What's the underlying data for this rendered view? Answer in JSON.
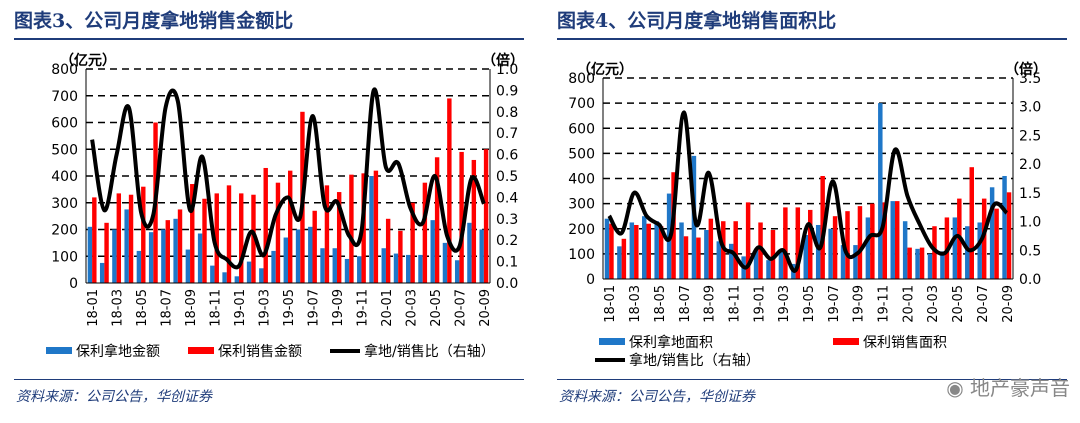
{
  "chart_data": [
    {
      "type": "bar+line",
      "title": "图表3、公司月度拿地销售金额比",
      "ylabel_left": "（亿元）",
      "ylabel_right": "（倍）",
      "ylim_left": [
        0,
        800
      ],
      "ylim_right": [
        0,
        1.0
      ],
      "yticks_left": [
        "0",
        "100",
        "200",
        "300",
        "400",
        "500",
        "600",
        "700",
        "800"
      ],
      "yticks_right": [
        "0.0",
        "0.1",
        "0.2",
        "0.3",
        "0.4",
        "0.5",
        "0.6",
        "0.7",
        "0.8",
        "0.9",
        "1.0"
      ],
      "categories": [
        "18-01",
        "18-02",
        "18-03",
        "18-04",
        "18-05",
        "18-06",
        "18-07",
        "18-08",
        "18-09",
        "18-10",
        "18-11",
        "18-12",
        "19-01",
        "19-02",
        "19-03",
        "19-04",
        "19-05",
        "19-06",
        "19-07",
        "19-08",
        "19-09",
        "19-10",
        "19-11",
        "19-12",
        "20-01",
        "20-02",
        "20-03",
        "20-04",
        "20-05",
        "20-06",
        "20-07",
        "20-08",
        "20-09"
      ],
      "xtick_labels": [
        "18-01",
        "18-03",
        "18-05",
        "18-07",
        "18-09",
        "18-11",
        "19-01",
        "19-03",
        "19-05",
        "19-07",
        "19-09",
        "19-11",
        "20-01",
        "20-03",
        "20-05",
        "20-07",
        "20-09"
      ],
      "series": [
        {
          "name": "保利拿地金额",
          "kind": "bar",
          "color": "#1f77c8",
          "values": [
            210,
            75,
            200,
            275,
            120,
            190,
            200,
            240,
            125,
            185,
            65,
            40,
            25,
            80,
            55,
            120,
            170,
            200,
            210,
            130,
            130,
            90,
            100,
            400,
            130,
            110,
            105,
            105,
            235,
            150,
            85,
            225,
            200
          ]
        },
        {
          "name": "保利销售金额",
          "kind": "bar",
          "color": "#ff0000",
          "values": [
            320,
            225,
            335,
            330,
            360,
            600,
            235,
            275,
            370,
            315,
            335,
            365,
            335,
            330,
            430,
            375,
            420,
            640,
            270,
            365,
            340,
            405,
            410,
            420,
            240,
            195,
            300,
            375,
            470,
            690,
            490,
            460,
            500
          ]
        },
        {
          "name": "拿地/销售比（右轴）",
          "kind": "line",
          "axis": "right",
          "color": "#000000",
          "values": [
            0.67,
            0.34,
            0.6,
            0.82,
            0.33,
            0.32,
            0.82,
            0.85,
            0.34,
            0.59,
            0.19,
            0.11,
            0.08,
            0.24,
            0.13,
            0.32,
            0.4,
            0.31,
            0.78,
            0.36,
            0.38,
            0.22,
            0.24,
            0.9,
            0.54,
            0.56,
            0.35,
            0.28,
            0.5,
            0.22,
            0.17,
            0.49,
            0.37
          ]
        }
      ],
      "legend": [
        "保利拿地金额",
        "保利销售金额",
        "拿地/销售比（右轴）"
      ],
      "source": "资料来源：公司公告，华创证券"
    },
    {
      "type": "bar+line",
      "title": "图表4、公司月度拿地销售面积比",
      "ylabel_left": "（亿元）",
      "ylabel_right": "（倍）",
      "ylim_left": [
        0,
        800
      ],
      "ylim_right": [
        0,
        3.5
      ],
      "yticks_left": [
        "0",
        "100",
        "200",
        "300",
        "400",
        "500",
        "600",
        "700",
        "800"
      ],
      "yticks_right": [
        "0.0",
        "0.5",
        "1.0",
        "1.5",
        "2.0",
        "2.5",
        "3.0",
        "3.5"
      ],
      "categories": [
        "18-01",
        "18-02",
        "18-03",
        "18-04",
        "18-05",
        "18-06",
        "18-07",
        "18-08",
        "18-09",
        "18-10",
        "18-11",
        "18-12",
        "19-01",
        "19-02",
        "19-03",
        "19-04",
        "19-05",
        "19-06",
        "19-07",
        "19-08",
        "19-09",
        "19-10",
        "19-11",
        "19-12",
        "20-01",
        "20-02",
        "20-03",
        "20-04",
        "20-05",
        "20-06",
        "20-07",
        "20-08",
        "20-09"
      ],
      "xtick_labels": [
        "18-01",
        "18-03",
        "18-05",
        "18-07",
        "18-09",
        "18-11",
        "19-01",
        "19-03",
        "19-05",
        "19-07",
        "19-09",
        "19-11",
        "20-01",
        "20-03",
        "20-05",
        "20-07",
        "20-09"
      ],
      "series": [
        {
          "name": "保利拿地面积",
          "kind": "bar",
          "color": "#1f77c8",
          "values": [
            240,
            130,
            225,
            250,
            230,
            340,
            225,
            490,
            195,
            150,
            140,
            90,
            115,
            75,
            110,
            60,
            175,
            215,
            200,
            135,
            135,
            245,
            700,
            310,
            230,
            120,
            100,
            110,
            245,
            210,
            225,
            365,
            410
          ]
        },
        {
          "name": "保利销售面积",
          "kind": "bar",
          "color": "#ff0000",
          "values": [
            220,
            160,
            215,
            220,
            210,
            425,
            170,
            165,
            240,
            230,
            230,
            305,
            225,
            195,
            285,
            285,
            275,
            410,
            250,
            270,
            290,
            300,
            305,
            310,
            125,
            125,
            210,
            245,
            320,
            445,
            320,
            280,
            345
          ]
        },
        {
          "name": "拿地/销售比（右轴）",
          "kind": "line",
          "axis": "right",
          "color": "#000000",
          "values": [
            1.1,
            0.8,
            1.5,
            1.1,
            0.95,
            0.8,
            2.9,
            0.95,
            1.85,
            0.65,
            0.45,
            0.2,
            0.55,
            0.35,
            0.5,
            0.15,
            0.95,
            0.55,
            1.7,
            0.5,
            0.45,
            0.75,
            0.9,
            2.25,
            1.45,
            0.95,
            0.55,
            0.45,
            0.75,
            0.5,
            0.7,
            1.3,
            1.15
          ]
        }
      ],
      "legend": [
        "保利拿地面积",
        "保利销售面积",
        "拿地/销售比（右轴）"
      ],
      "source": "资料来源：公司公告，华创证券"
    }
  ],
  "watermark": "地产豪声音",
  "watermark_icon": "wechat-icon"
}
